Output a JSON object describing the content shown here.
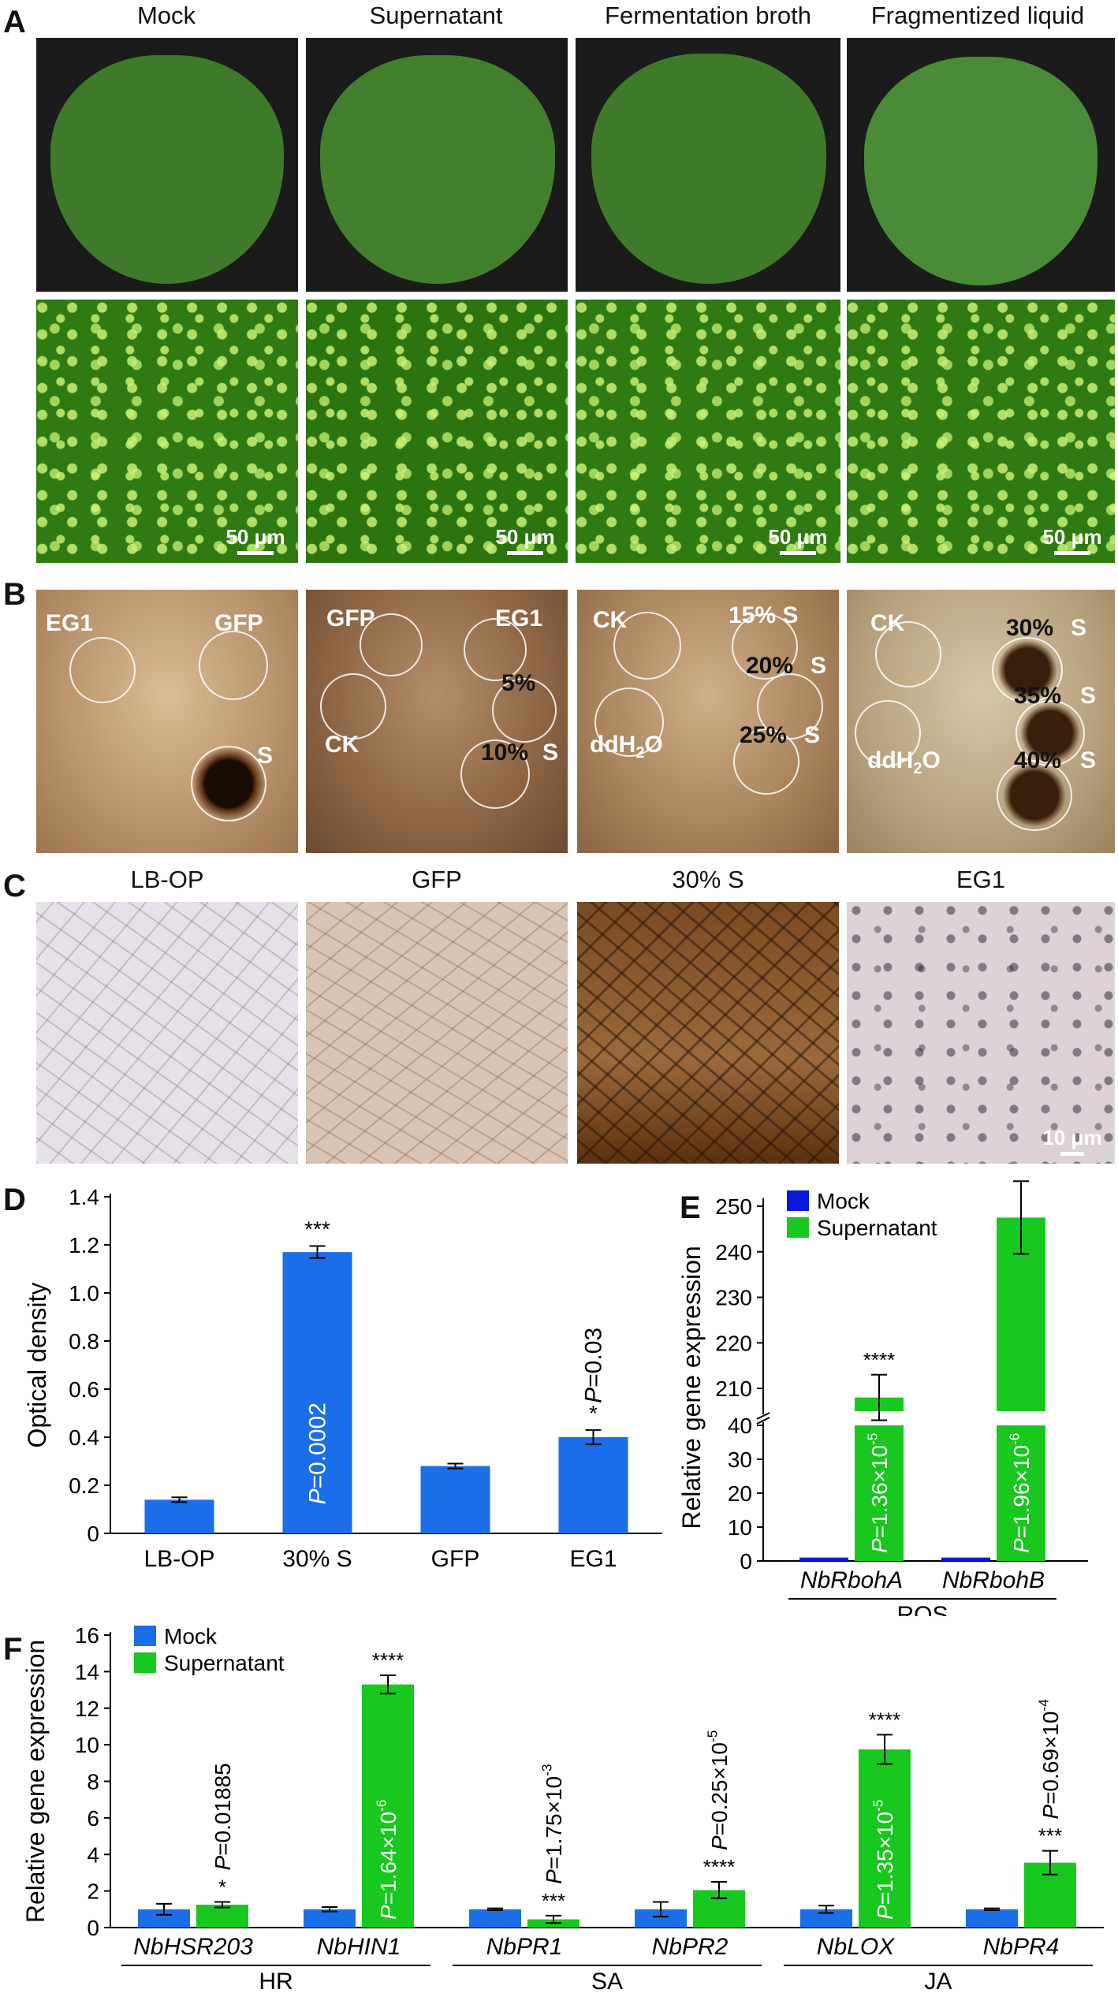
{
  "panels": {
    "a": {
      "letter": "A",
      "columns": [
        "Mock",
        "Supernatant",
        "Fermentation broth",
        "Fragmentized liquid"
      ],
      "scale_bar": "50 μm"
    },
    "b": {
      "letter": "B",
      "leaf1": {
        "eg1": "EG1",
        "gfp": "GFP",
        "s": "S"
      },
      "leaf2": {
        "gfp": "GFP",
        "eg1": "EG1",
        "ck": "CK",
        "p5": "5%",
        "p10": "10%",
        "s": "S"
      },
      "leaf3": {
        "ck": "CK",
        "ddh2o": "ddH",
        "sub2": "2",
        "o": "O",
        "p15": "15%",
        "p20": "20%",
        "p25": "25%",
        "s": "S"
      },
      "leaf4": {
        "ck": "CK",
        "ddh2o": "ddH",
        "sub2": "2",
        "o": "O",
        "p30": "30%",
        "p35": "35%",
        "p40": "40%",
        "s": "S"
      }
    },
    "c": {
      "letter": "C",
      "columns": [
        "LB-OP",
        "GFP",
        "30% S",
        "EG1"
      ],
      "scale_bar": "10 μm"
    },
    "d": {
      "letter": "D"
    },
    "e": {
      "letter": "E"
    },
    "f": {
      "letter": "F"
    }
  },
  "chart_data": [
    {
      "id": "D",
      "type": "bar",
      "ylabel": "Optical density",
      "ylim": [
        0,
        1.4
      ],
      "yticks": [
        "0",
        "0.2",
        "0.4",
        "0.6",
        "0.8",
        "1.0",
        "1.2",
        "1.4"
      ],
      "categories": [
        "LB-OP",
        "30% S",
        "GFP",
        "EG1"
      ],
      "values": [
        0.14,
        1.17,
        0.28,
        0.4
      ],
      "errors": [
        0.01,
        0.025,
        0.01,
        0.03
      ],
      "significance": [
        "",
        "***",
        "",
        "*"
      ],
      "p_labels": [
        "",
        "P=0.0002",
        "",
        "P=0.03"
      ],
      "color": "#1a6ee8"
    },
    {
      "id": "E",
      "type": "bar",
      "ylabel": "Relative gene expression",
      "axis_break": true,
      "lower_yticks": [
        "0",
        "10",
        "20",
        "30",
        "40"
      ],
      "upper_yticks": [
        "210",
        "220",
        "230",
        "240",
        "250"
      ],
      "categories": [
        "NbRbohA",
        "NbRbohB"
      ],
      "group_label": "ROS",
      "series": [
        {
          "name": "Mock",
          "values": [
            1,
            1
          ],
          "color": "#0a18dc"
        },
        {
          "name": "Supernatant",
          "values": [
            208,
            247.5
          ],
          "errors": [
            5,
            8
          ],
          "color": "#19c81e"
        }
      ],
      "significance": [
        "****",
        "****"
      ],
      "p_labels": [
        {
          "pre": "P",
          "main": "=1.36×10",
          "exp": "-5"
        },
        {
          "pre": "P",
          "main": "=1.96×10",
          "exp": "-6"
        }
      ]
    },
    {
      "id": "F",
      "type": "bar",
      "ylabel": "Relative gene expression",
      "ylim": [
        0,
        16
      ],
      "yticks": [
        "0",
        "2",
        "4",
        "6",
        "8",
        "10",
        "12",
        "14",
        "16"
      ],
      "categories": [
        "NbHSR203",
        "NbHIN1",
        "NbPR1",
        "NbPR2",
        "NbLOX",
        "NbPR4"
      ],
      "groups": [
        {
          "label": "HR",
          "members": [
            "NbHSR203",
            "NbHIN1"
          ]
        },
        {
          "label": "SA",
          "members": [
            "NbPR1",
            "NbPR2"
          ]
        },
        {
          "label": "JA",
          "members": [
            "NbLOX",
            "NbPR4"
          ]
        }
      ],
      "series": [
        {
          "name": "Mock",
          "values": [
            1.0,
            1.0,
            1.0,
            1.0,
            1.0,
            1.0
          ],
          "errors": [
            0.3,
            0.12,
            0.05,
            0.4,
            0.2,
            0.05
          ],
          "color": "#1a6ee8"
        },
        {
          "name": "Supernatant",
          "values": [
            1.25,
            13.3,
            0.45,
            2.05,
            9.75,
            3.55
          ],
          "errors": [
            0.15,
            0.5,
            0.2,
            0.45,
            0.8,
            0.65
          ],
          "color": "#19c81e"
        }
      ],
      "significance": [
        "*",
        "****",
        "***",
        "****",
        "****",
        "***"
      ],
      "p_labels": [
        {
          "pre": "P",
          "main": "=0.01885",
          "exp": ""
        },
        {
          "pre": "P",
          "main": "=1.64×10",
          "exp": "-6"
        },
        {
          "pre": "P",
          "main": "=1.75×10",
          "exp": "-3"
        },
        {
          "pre": "P",
          "main": "=0.25×10",
          "exp": "-5"
        },
        {
          "pre": "P",
          "main": "=1.35×10",
          "exp": "-5"
        },
        {
          "pre": "P",
          "main": "=0.69×10",
          "exp": "-4"
        }
      ]
    }
  ]
}
